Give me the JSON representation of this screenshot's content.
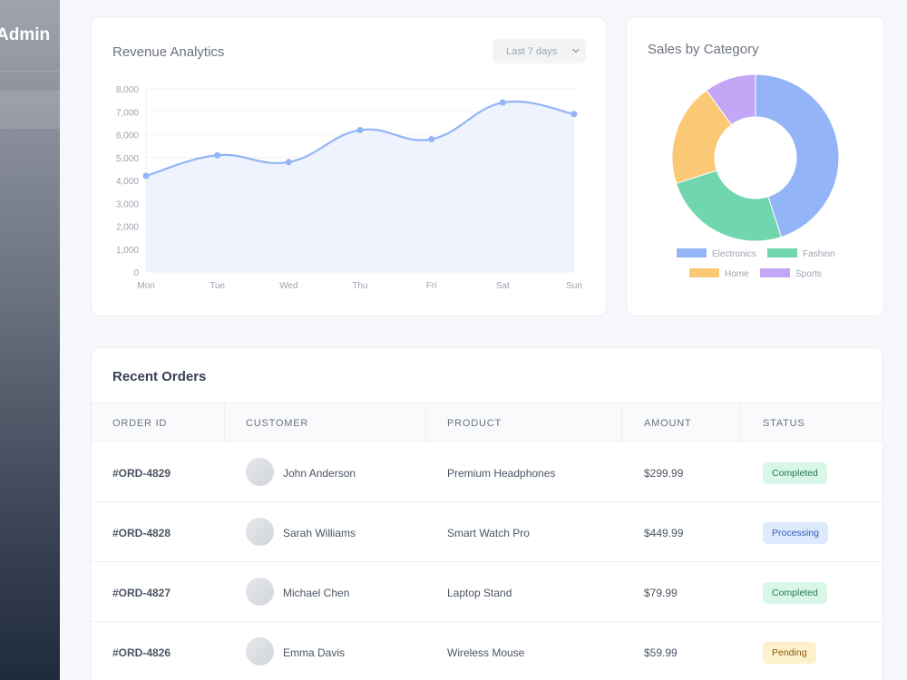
{
  "sidebar": {
    "brand": "Admin"
  },
  "revenue": {
    "title": "Revenue Analytics",
    "range_label": "Last 7 days"
  },
  "sales": {
    "title": "Sales by Category"
  },
  "chart_data": [
    {
      "type": "area",
      "title": "Revenue Analytics",
      "categories": [
        "Mon",
        "Tue",
        "Wed",
        "Thu",
        "Fri",
        "Sat",
        "Sun"
      ],
      "values": [
        4200,
        5100,
        4800,
        6200,
        5800,
        7400,
        6900
      ],
      "ylim": [
        0,
        8000
      ],
      "yticks": [
        0,
        1000,
        2000,
        3000,
        4000,
        5000,
        6000,
        7000,
        8000
      ],
      "ytick_labels": [
        "0",
        "1,000",
        "2,000",
        "3,000",
        "4,000",
        "5,000",
        "6,000",
        "7,000",
        "8,000"
      ],
      "grid": true,
      "color": "#93b4f5",
      "fill": "#eef3fd"
    },
    {
      "type": "pie",
      "title": "Sales by Category",
      "donut": true,
      "categories": [
        "Electronics",
        "Fashion",
        "Home",
        "Sports"
      ],
      "values": [
        45,
        25,
        20,
        10
      ],
      "colors": [
        "#93b5f8",
        "#6fd6ae",
        "#fbc875",
        "#c4a6f6"
      ],
      "legend": "bottom"
    }
  ],
  "orders": {
    "title": "Recent Orders",
    "columns": [
      "ORDER ID",
      "CUSTOMER",
      "PRODUCT",
      "AMOUNT",
      "STATUS"
    ],
    "rows": [
      {
        "id": "#ORD-4829",
        "customer": "John Anderson",
        "product": "Premium Headphones",
        "amount": "$299.99",
        "status": "Completed"
      },
      {
        "id": "#ORD-4828",
        "customer": "Sarah Williams",
        "product": "Smart Watch Pro",
        "amount": "$449.99",
        "status": "Processing"
      },
      {
        "id": "#ORD-4827",
        "customer": "Michael Chen",
        "product": "Laptop Stand",
        "amount": "$79.99",
        "status": "Completed"
      },
      {
        "id": "#ORD-4826",
        "customer": "Emma Davis",
        "product": "Wireless Mouse",
        "amount": "$59.99",
        "status": "Pending"
      }
    ],
    "status_colors": {
      "Completed": {
        "bg": "#d9f7e8",
        "fg": "#1f7a4d"
      },
      "Processing": {
        "bg": "#dde9fd",
        "fg": "#2f5fb8"
      },
      "Pending": {
        "bg": "#fdf1cc",
        "fg": "#8a5a0b"
      }
    }
  }
}
